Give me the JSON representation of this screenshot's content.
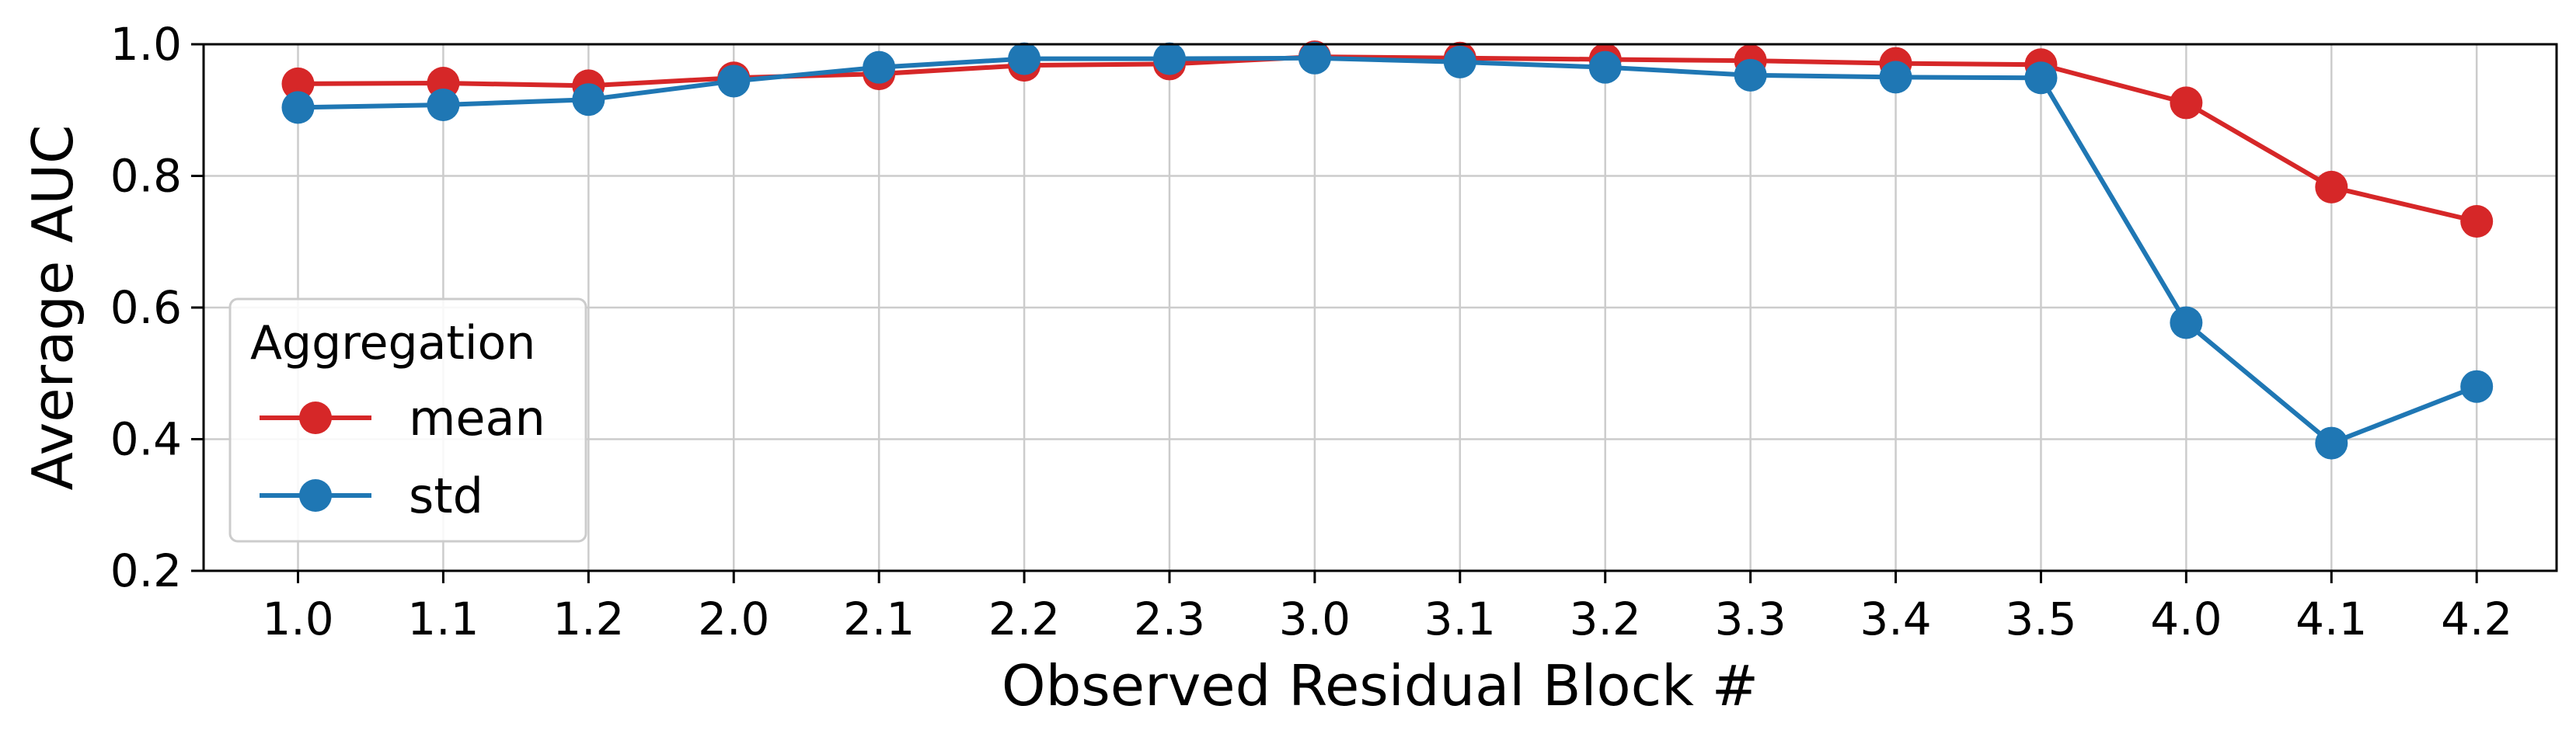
{
  "chart_data": {
    "type": "line",
    "title": "",
    "xlabel": "Observed Residual Block #",
    "ylabel": "Average AUC",
    "categories": [
      "1.0",
      "1.1",
      "1.2",
      "2.0",
      "2.1",
      "2.2",
      "2.3",
      "3.0",
      "3.1",
      "3.2",
      "3.3",
      "3.4",
      "3.5",
      "4.0",
      "4.1",
      "4.2"
    ],
    "ylim": [
      0.2,
      1.0
    ],
    "yticks": [
      "0.2",
      "0.4",
      "0.6",
      "0.8",
      "1.0"
    ],
    "grid": true,
    "legend": {
      "title": "Aggregation",
      "placement": "lower-left"
    },
    "series": [
      {
        "name": "mean",
        "color": "#d62728",
        "values": [
          0.94,
          0.941,
          0.937,
          0.949,
          0.955,
          0.968,
          0.97,
          0.981,
          0.979,
          0.977,
          0.975,
          0.971,
          0.969,
          0.911,
          0.783,
          0.731
        ]
      },
      {
        "name": "std",
        "color": "#1f77b4",
        "values": [
          0.904,
          0.908,
          0.916,
          0.944,
          0.965,
          0.978,
          0.978,
          0.979,
          0.973,
          0.965,
          0.953,
          0.95,
          0.949,
          0.577,
          0.394,
          0.48
        ]
      }
    ]
  }
}
